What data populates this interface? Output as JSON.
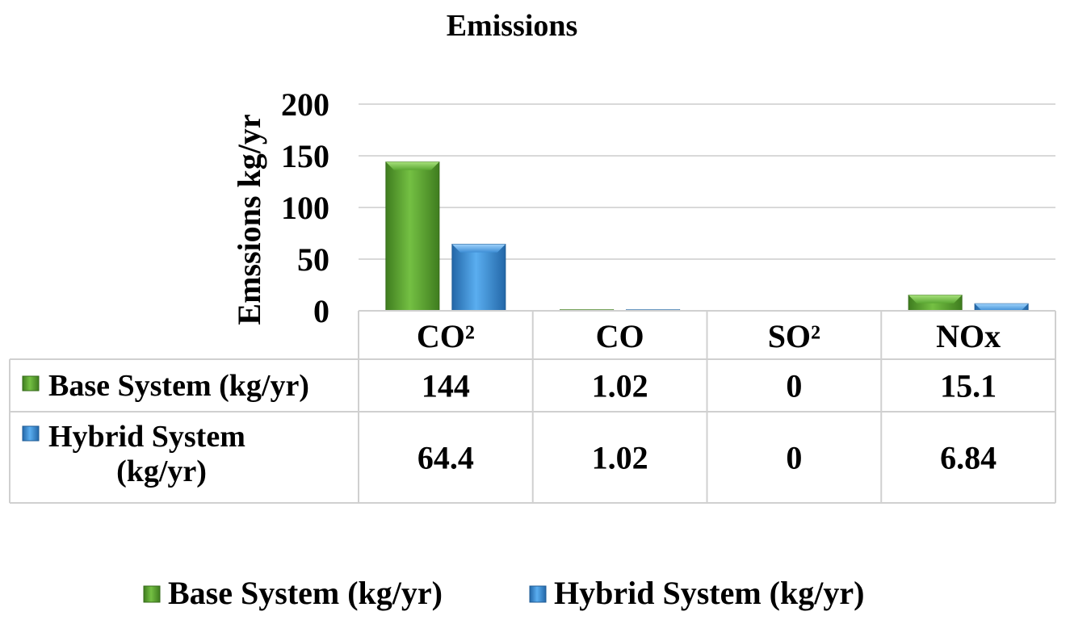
{
  "chart_data": {
    "type": "bar",
    "title": "Emissions",
    "ylabel": "Emssions kg/yr",
    "xlabel": "",
    "ylim": [
      0,
      200
    ],
    "yticks": [
      0,
      50,
      100,
      150,
      200
    ],
    "grid": true,
    "legend_position": "bottom",
    "categories": [
      "CO²",
      "CO",
      "SO²",
      "NOx"
    ],
    "series": [
      {
        "name": "Base System (kg/yr)",
        "values": [
          144,
          1.02,
          0,
          15.1
        ],
        "labels": [
          "144",
          "1.02",
          "0",
          "15.1"
        ],
        "color": "#5aa832"
      },
      {
        "name": "Hybrid System (kg/yr)",
        "values": [
          64.4,
          1.02,
          0,
          6.84
        ],
        "labels": [
          "64.4",
          "1.02",
          "0",
          "6.84"
        ],
        "color": "#3f8fd6"
      }
    ],
    "data_table": true
  }
}
